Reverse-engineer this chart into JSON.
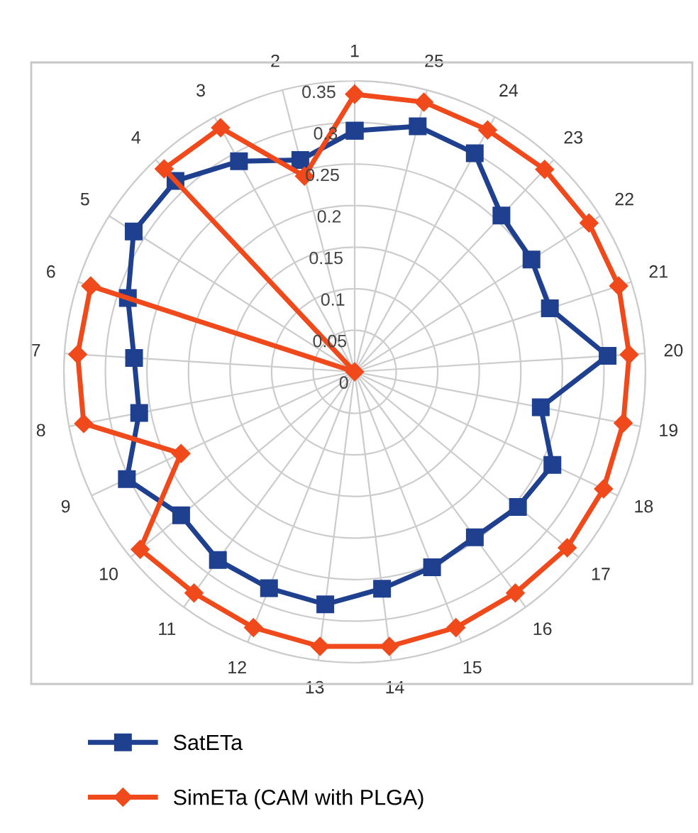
{
  "chart_data": {
    "type": "radar",
    "categories": [
      "1",
      "25",
      "24",
      "23",
      "22",
      "21",
      "20",
      "19",
      "18",
      "17",
      "16",
      "15",
      "14",
      "13",
      "12",
      "11",
      "10",
      "9",
      "8",
      "7",
      "6",
      "5",
      "4",
      "3",
      "2"
    ],
    "ylim": [
      0,
      0.35
    ],
    "yticks": [
      0,
      0.05,
      0.1,
      0.15,
      0.2,
      0.25,
      0.3,
      0.35
    ],
    "grid": true,
    "legend": "bottom",
    "series": [
      {
        "name": "SatETa",
        "color": "#1f3f8f",
        "marker": "square",
        "values": [
          0.29,
          0.305,
          0.3,
          0.258,
          0.252,
          0.247,
          0.305,
          0.228,
          0.263,
          0.255,
          0.246,
          0.253,
          0.263,
          0.282,
          0.28,
          0.28,
          0.271,
          0.303,
          0.264,
          0.266,
          0.287,
          0.315,
          0.315,
          0.289,
          0.263
        ]
      },
      {
        "name": "SimETa (CAM with PLGA)",
        "color": "#f04a1c",
        "marker": "diamond",
        "values": [
          0.334,
          0.335,
          0.332,
          0.334,
          0.334,
          0.334,
          0.331,
          0.329,
          0.331,
          0.332,
          0.329,
          0.331,
          0.333,
          0.333,
          0.331,
          0.329,
          0.335,
          0.231,
          0.332,
          0.334,
          0.334,
          0,
          0.335,
          0.335,
          0.243
        ]
      }
    ]
  }
}
